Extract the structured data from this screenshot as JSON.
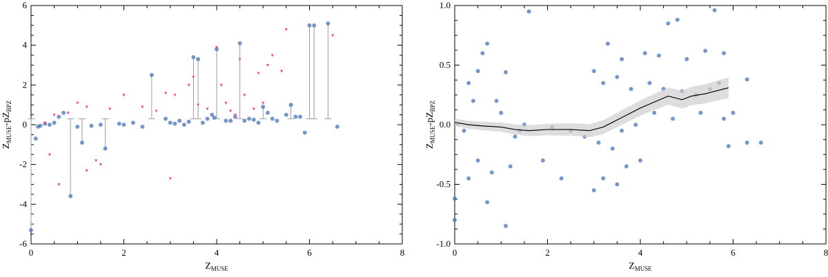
{
  "chart_data": [
    {
      "type": "scatter",
      "xlabel": "Z",
      "xlabel_sub": "MUSE",
      "ylabel": "Z",
      "ylabel_sub1": "MUSE",
      "ylabel_mid": "-pZ",
      "ylabel_sub2": "BPZ",
      "xlim": [
        0,
        8
      ],
      "ylim": [
        -6,
        6
      ],
      "xticks": [
        "0",
        "2",
        "4",
        "6",
        "8"
      ],
      "yticks": [
        "-6",
        "-4",
        "-2",
        "0",
        "2",
        "4",
        "6"
      ],
      "ytick_values": [
        -6,
        -4,
        -2,
        0,
        2,
        4,
        6
      ],
      "colors": {
        "points": "#4a74b8",
        "outliers": "#ff3d7f",
        "errorbars": "#9a9a9a"
      },
      "series": [
        {
          "marker": "circle",
          "points": [
            [
              0.1,
              -0.7
            ],
            [
              0.0,
              -5.3
            ],
            [
              0.15,
              -0.1
            ],
            [
              0.3,
              0.05
            ],
            [
              0.5,
              0.1
            ],
            [
              0.6,
              0.4
            ],
            [
              0.7,
              0.6
            ],
            [
              0.85,
              -3.6
            ],
            [
              1.6,
              -1.2
            ],
            [
              1.1,
              -0.9
            ],
            [
              2.6,
              2.5
            ],
            [
              2.9,
              0.3
            ],
            [
              3.0,
              0.1
            ],
            [
              3.2,
              0.2
            ],
            [
              3.4,
              0.15
            ],
            [
              3.5,
              3.4
            ],
            [
              3.6,
              3.3
            ],
            [
              3.8,
              0.3
            ],
            [
              3.9,
              0.5
            ],
            [
              4.0,
              3.8
            ],
            [
              4.2,
              0.2
            ],
            [
              4.4,
              0.4
            ],
            [
              4.5,
              4.1
            ],
            [
              4.7,
              0.3
            ],
            [
              4.9,
              0.1
            ],
            [
              5.1,
              0.6
            ],
            [
              5.3,
              0.2
            ],
            [
              5.5,
              0.5
            ],
            [
              5.7,
              0.4
            ],
            [
              5.9,
              -0.4
            ],
            [
              6.0,
              5.0
            ],
            [
              6.1,
              5.0
            ],
            [
              6.4,
              5.1
            ],
            [
              6.6,
              -0.1
            ],
            [
              5.6,
              1.0
            ],
            [
              5.0,
              0.9
            ],
            [
              4.6,
              0.2
            ],
            [
              3.3,
              0.0
            ],
            [
              3.1,
              0.05
            ],
            [
              2.2,
              0.1
            ],
            [
              1.9,
              0.05
            ],
            [
              2.4,
              -0.1
            ],
            [
              1.3,
              -0.05
            ],
            [
              1.0,
              -0.1
            ],
            [
              0.4,
              0.0
            ],
            [
              0.2,
              -0.05
            ],
            [
              3.7,
              0.1
            ],
            [
              4.3,
              0.2
            ],
            [
              5.2,
              0.3
            ],
            [
              5.8,
              0.4
            ],
            [
              2.0,
              0.0
            ],
            [
              1.5,
              0.0
            ],
            [
              3.95,
              0.35
            ],
            [
              4.8,
              0.25
            ]
          ]
        },
        {
          "marker": "triangle",
          "points": [
            [
              0.4,
              -1.5
            ],
            [
              0.6,
              -3.0
            ],
            [
              0.8,
              0.6
            ],
            [
              1.0,
              1.1
            ],
            [
              1.2,
              0.9
            ],
            [
              1.4,
              -1.8
            ],
            [
              1.2,
              -2.3
            ],
            [
              1.5,
              -2.0
            ],
            [
              2.0,
              1.5
            ],
            [
              2.4,
              0.9
            ],
            [
              2.7,
              0.7
            ],
            [
              3.0,
              -2.7
            ],
            [
              3.1,
              1.5
            ],
            [
              3.4,
              2.0
            ],
            [
              3.6,
              1.0
            ],
            [
              3.8,
              0.8
            ],
            [
              4.1,
              2.0
            ],
            [
              4.2,
              1.1
            ],
            [
              4.3,
              0.7
            ],
            [
              4.5,
              3.3
            ],
            [
              4.6,
              1.5
            ],
            [
              4.8,
              0.8
            ],
            [
              5.0,
              1.1
            ],
            [
              5.2,
              3.5
            ],
            [
              5.4,
              2.7
            ],
            [
              5.5,
              4.8
            ],
            [
              6.5,
              4.5
            ],
            [
              0.3,
              0.1
            ],
            [
              0.5,
              0.5
            ],
            [
              1.7,
              0.8
            ],
            [
              2.9,
              1.6
            ],
            [
              3.5,
              2.4
            ],
            [
              4.0,
              3.9
            ],
            [
              4.9,
              2.6
            ],
            [
              5.1,
              3.0
            ],
            [
              4.4,
              0.5
            ]
          ]
        }
      ]
    },
    {
      "type": "scatter",
      "xlabel": "Z",
      "xlabel_sub": "MUSE",
      "ylabel": "Z",
      "ylabel_sub1": "MUSE",
      "ylabel_mid": "-pZ",
      "ylabel_sub2": "BPZ",
      "xlim": [
        0,
        8
      ],
      "ylim": [
        -1.0,
        1.0
      ],
      "xticks": [
        "0",
        "2",
        "4",
        "6",
        "8"
      ],
      "yticks": [
        "-1.0",
        "-0.5",
        "0.0",
        "0.5",
        "1.0"
      ],
      "ytick_values": [
        -1.0,
        -0.5,
        0.0,
        0.5,
        1.0
      ],
      "colors": {
        "points": "#4a74b8",
        "trend": "#000000",
        "band": "#cfcfcf"
      },
      "series": [
        {
          "marker": "circle",
          "points": [
            [
              1.6,
              0.95
            ],
            [
              5.6,
              0.96
            ],
            [
              4.6,
              0.85
            ],
            [
              4.8,
              0.88
            ],
            [
              0.7,
              0.68
            ],
            [
              0.6,
              0.6
            ],
            [
              0.5,
              0.45
            ],
            [
              1.1,
              0.44
            ],
            [
              0.3,
              0.35
            ],
            [
              0.4,
              0.2
            ],
            [
              3.3,
              0.68
            ],
            [
              3.6,
              0.55
            ],
            [
              4.1,
              0.6
            ],
            [
              4.4,
              0.58
            ],
            [
              5.0,
              0.55
            ],
            [
              5.4,
              0.62
            ],
            [
              5.8,
              0.6
            ],
            [
              3.0,
              0.45
            ],
            [
              3.2,
              0.35
            ],
            [
              3.5,
              0.4
            ],
            [
              3.8,
              0.3
            ],
            [
              4.2,
              0.35
            ],
            [
              4.5,
              0.3
            ],
            [
              4.9,
              0.28
            ],
            [
              5.2,
              0.25
            ],
            [
              5.5,
              0.3
            ],
            [
              5.7,
              0.35
            ],
            [
              6.3,
              0.38
            ],
            [
              0.0,
              -0.8
            ],
            [
              0.0,
              -0.62
            ],
            [
              0.7,
              -0.65
            ],
            [
              1.1,
              -0.85
            ],
            [
              0.3,
              -0.45
            ],
            [
              0.5,
              -0.3
            ],
            [
              0.8,
              -0.4
            ],
            [
              1.2,
              -0.35
            ],
            [
              1.9,
              -0.3
            ],
            [
              2.3,
              -0.45
            ],
            [
              3.0,
              -0.55
            ],
            [
              3.2,
              -0.45
            ],
            [
              3.5,
              -0.5
            ],
            [
              3.7,
              -0.35
            ],
            [
              4.0,
              -0.3
            ],
            [
              3.4,
              -0.2
            ],
            [
              3.1,
              -0.15
            ],
            [
              2.8,
              -0.1
            ],
            [
              2.5,
              -0.05
            ],
            [
              2.1,
              -0.02
            ],
            [
              5.9,
              -0.18
            ],
            [
              6.3,
              -0.15
            ],
            [
              6.6,
              -0.15
            ],
            [
              6.0,
              0.1
            ],
            [
              5.8,
              0.05
            ],
            [
              5.3,
              0.1
            ],
            [
              4.7,
              0.05
            ],
            [
              4.3,
              0.1
            ],
            [
              3.9,
              0.0
            ],
            [
              3.6,
              -0.05
            ],
            [
              1.5,
              0.0
            ],
            [
              1.3,
              -0.1
            ],
            [
              1.4,
              -0.05
            ],
            [
              1.0,
              0.1
            ],
            [
              0.9,
              0.2
            ],
            [
              0.2,
              -0.05
            ]
          ]
        }
      ],
      "trend": {
        "x": [
          0.0,
          0.3,
          0.6,
          1.0,
          1.3,
          1.6,
          2.0,
          2.5,
          2.9,
          3.2,
          3.6,
          4.0,
          4.3,
          4.6,
          4.9,
          5.1,
          5.4,
          5.7,
          5.9
        ],
        "y": [
          0.02,
          0.0,
          -0.01,
          -0.02,
          -0.04,
          -0.05,
          -0.04,
          -0.04,
          -0.05,
          -0.02,
          0.06,
          0.14,
          0.19,
          0.24,
          0.21,
          0.24,
          0.26,
          0.29,
          0.31
        ]
      }
    }
  ]
}
